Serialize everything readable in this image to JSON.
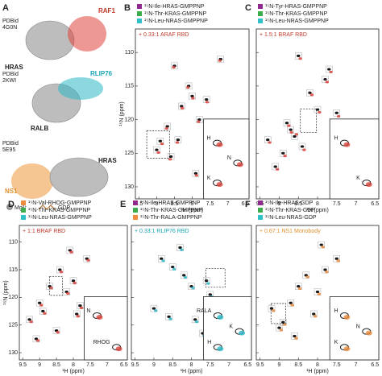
{
  "panel_a": {
    "letter": "A",
    "structures": [
      {
        "pdb": "PDBid",
        "pdb_id": "4G0N",
        "partner": "RAF1",
        "ras": "HRAS",
        "color": "#e0443c"
      },
      {
        "pdb": "PDBid",
        "pdb_id": "2KWI",
        "partner": "RLIP76",
        "ras": "RALB",
        "color": "#2bb9c4"
      },
      {
        "pdb": "PDBid",
        "pdb_id": "5E95",
        "partner": "NS1",
        "ras": "HRAS",
        "color": "#f0a04a"
      }
    ],
    "key": [
      "Mg²⁺",
      "GDP"
    ]
  },
  "chart_data": [
    {
      "type": "scatter",
      "panel": "B",
      "legend": [
        {
          "name": "¹⁵N-Ile-HRAS-GMPPNP",
          "color": "#8e2a8e"
        },
        {
          "name": "¹⁵N-Thr-KRAS-GMPPNP",
          "color": "#3cab4a"
        },
        {
          "name": "¹⁵N-Leu-NRAS-GMPPNP",
          "color": "#2fc0c8"
        }
      ],
      "annotation": "+ 0.33:1 ARAF RBD",
      "annotation_color": "#c0392b",
      "xlabel": "¹H (ppm)",
      "ylabel": "¹⁵N (ppm)",
      "xlim": [
        9.6,
        6.4
      ],
      "ylim": [
        106.5,
        131.8
      ],
      "xticks": [
        9.5,
        9.0,
        8.5,
        8.0,
        7.5,
        7.0,
        6.5
      ],
      "yticks": [
        110,
        115,
        120,
        125,
        130
      ],
      "ytick_labels": true,
      "series": [
        {
          "color": "#1a1a1a",
          "x": [
            9.0,
            8.9,
            8.7,
            8.5,
            8.3,
            8.1,
            8.0,
            7.8,
            7.6,
            7.4,
            8.4,
            7.9,
            8.6,
            7.2
          ],
          "y": [
            124.5,
            123.2,
            121,
            112,
            118,
            115,
            116.5,
            120,
            117,
            120.5,
            123,
            128,
            125.5,
            111
          ]
        },
        {
          "color": "#d9423a",
          "x": [
            8.95,
            8.85,
            8.72,
            8.52,
            8.28,
            8.12,
            7.98,
            7.82,
            7.58,
            7.42,
            8.42,
            7.88,
            8.62,
            7.22
          ],
          "y": [
            124.9,
            123.6,
            121.3,
            112.2,
            118.3,
            115.2,
            116.8,
            120.3,
            117.4,
            120.8,
            123.4,
            128.3,
            125.9,
            111.2
          ]
        }
      ],
      "inset_labels": [
        "H",
        "N",
        "K"
      ]
    },
    {
      "type": "scatter",
      "panel": "C",
      "legend": [
        {
          "name": "¹⁵N-Tyr-HRAS-GMPPNP",
          "color": "#8e2a8e"
        },
        {
          "name": "¹⁵N-Thr-KRAS-GMPPNP",
          "color": "#3cab4a"
        },
        {
          "name": "¹⁵N-Leu-NRAS-GMPPNP",
          "color": "#2fc0c8"
        }
      ],
      "annotation": "+ 1.5:1 BRAF RBD",
      "annotation_color": "#c0392b",
      "xlabel": "¹H (ppm)",
      "xlim": [
        9.6,
        6.4
      ],
      "ylim": [
        106.5,
        131.8
      ],
      "xticks": [
        9.5,
        9.0,
        8.5,
        8.0,
        7.5,
        7.0,
        6.5
      ],
      "yticks": [
        110,
        115,
        120,
        125,
        130
      ],
      "ytick_labels": false,
      "series": [
        {
          "color": "#1a1a1a",
          "x": [
            8.8,
            8.7,
            8.6,
            8.9,
            8.2,
            8.0,
            7.8,
            7.5,
            9.1,
            8.4,
            7.7,
            9.3,
            8.5
          ],
          "y": [
            120.5,
            121.5,
            122.5,
            125,
            116,
            118.5,
            114,
            119,
            127,
            124,
            112.5,
            123,
            110.5
          ]
        },
        {
          "color": "#d9423a",
          "x": [
            8.75,
            8.68,
            8.55,
            8.85,
            8.15,
            7.95,
            7.75,
            7.45,
            9.05,
            8.35,
            7.65,
            9.25,
            8.45
          ],
          "y": [
            120.9,
            121.9,
            122.2,
            125.4,
            116.3,
            118.9,
            114.4,
            119.5,
            127.4,
            124.5,
            112.9,
            123.4,
            110.9
          ]
        }
      ],
      "inset_labels": [
        "H",
        "K"
      ]
    },
    {
      "type": "scatter",
      "panel": "D",
      "legend": [
        {
          "name": "¹⁵N-Val-RHOG-GMPPNP",
          "color": "#f08a3c"
        },
        {
          "name": "¹⁵N-Thr-KRAS-GMPPNP",
          "color": "#3cab4a"
        },
        {
          "name": "¹⁵N-Leu-NRAS-GMPPNP",
          "color": "#2fc0c8"
        }
      ],
      "annotation": "+ 1:1 BRAF RBD",
      "annotation_color": "#c0392b",
      "xlabel": "¹H (ppm)",
      "ylabel": "¹⁵N (ppm)",
      "xlim": [
        9.6,
        6.4
      ],
      "ylim": [
        107,
        131.3
      ],
      "xticks": [
        9.5,
        9.0,
        8.5,
        8.0,
        7.5,
        7.0,
        6.5
      ],
      "yticks": [
        110,
        115,
        120,
        125,
        130
      ],
      "ytick_labels": true,
      "series": [
        {
          "color": "#1a1a1a",
          "x": [
            9.0,
            8.9,
            8.7,
            8.4,
            8.2,
            8.0,
            7.8,
            7.6,
            9.3,
            8.5,
            7.9,
            8.1,
            9.1
          ],
          "y": [
            121,
            122.5,
            118,
            115,
            119,
            117,
            121.5,
            113,
            124,
            126,
            123,
            111.5,
            127.5
          ]
        },
        {
          "color": "#d9423a",
          "x": [
            8.95,
            8.85,
            8.66,
            8.36,
            8.16,
            7.96,
            7.76,
            7.56,
            9.25,
            8.46,
            7.86,
            8.06,
            9.05
          ],
          "y": [
            121.4,
            122.9,
            118.3,
            115.4,
            119.3,
            117.4,
            121.9,
            113.3,
            124.4,
            126.3,
            123.4,
            111.8,
            127.8
          ]
        }
      ],
      "inset_labels": [
        "N",
        "RHOG"
      ]
    },
    {
      "type": "scatter",
      "panel": "E",
      "legend": [
        {
          "name": "¹⁵N-Ile-HRAS-GMPPNP",
          "color": "#8e2a8e"
        },
        {
          "name": "¹⁵N-Thr-KRAS-GMPPNP",
          "color": "#3cab4a"
        },
        {
          "name": "¹⁵N-Thr-RALA-GMPPNP",
          "color": "#f08a3c"
        }
      ],
      "annotation": "+ 0.33:1 RLIP76 RBD",
      "annotation_color": "#1aa6b7",
      "xlabel": "¹H (ppm)",
      "xlim": [
        9.6,
        6.4
      ],
      "ylim": [
        107,
        131.3
      ],
      "xticks": [
        9.5,
        9.0,
        8.5,
        8.0,
        7.5,
        7.0,
        6.5
      ],
      "yticks": [
        110,
        115,
        120,
        125,
        130
      ],
      "ytick_labels": false,
      "series": [
        {
          "color": "#1a1a1a",
          "x": [
            8.8,
            8.5,
            8.2,
            8.0,
            7.6,
            7.5,
            7.3,
            9.0,
            8.6,
            7.9,
            8.3,
            7.7
          ],
          "y": [
            113,
            114.5,
            116,
            118,
            117,
            119.5,
            121,
            122,
            123.5,
            124,
            111,
            126.5
          ]
        },
        {
          "color": "#2ab7c6",
          "x": [
            8.75,
            8.46,
            8.16,
            7.96,
            7.55,
            7.46,
            7.26,
            8.95,
            8.56,
            7.86,
            8.26,
            7.66
          ],
          "y": [
            113.4,
            114.9,
            116.4,
            118.3,
            117.5,
            119.9,
            121.4,
            122.4,
            123.9,
            124.4,
            111.4,
            126.9
          ]
        }
      ],
      "inset_labels": [
        "RALA",
        "K",
        "H"
      ]
    },
    {
      "type": "scatter",
      "panel": "F",
      "legend": [
        {
          "name": "¹⁵N-Ile-HRAS-GDP",
          "color": "#8e2a8e"
        },
        {
          "name": "¹⁵N-Thr-KRAS-GDP",
          "color": "#3cab4a"
        },
        {
          "name": "¹⁵N-Leu-NRAS-GDP",
          "color": "#2fc0c8"
        }
      ],
      "annotation": "+ 0.67:1 NS1 Monobody",
      "annotation_color": "#e0912f",
      "xlabel": "¹H (ppm)",
      "xlim": [
        9.6,
        6.4
      ],
      "ylim": [
        107,
        131.3
      ],
      "xticks": [
        9.5,
        9.0,
        8.5,
        8.0,
        7.5,
        7.0,
        6.5
      ],
      "yticks": [
        110,
        115,
        120,
        125,
        130
      ],
      "ytick_labels": false,
      "series": [
        {
          "color": "#1a1a1a",
          "x": [
            9.0,
            8.9,
            8.7,
            8.5,
            8.3,
            8.0,
            7.8,
            7.6,
            7.5,
            8.6,
            8.1,
            9.2,
            7.9
          ],
          "y": [
            125.5,
            124.5,
            121,
            118,
            116,
            119,
            115,
            121.5,
            113,
            127,
            123,
            122,
            110.5
          ]
        },
        {
          "color": "#e8893a",
          "x": [
            8.95,
            8.86,
            8.66,
            8.46,
            8.26,
            7.96,
            7.76,
            7.56,
            7.46,
            8.56,
            8.06,
            9.15,
            7.86
          ],
          "y": [
            125.9,
            124.9,
            121.4,
            118.4,
            116.3,
            119.4,
            115.4,
            121.9,
            113.4,
            127.4,
            123.4,
            122.4,
            110.9
          ]
        }
      ],
      "inset_labels": [
        "H",
        "N",
        "K"
      ]
    }
  ]
}
